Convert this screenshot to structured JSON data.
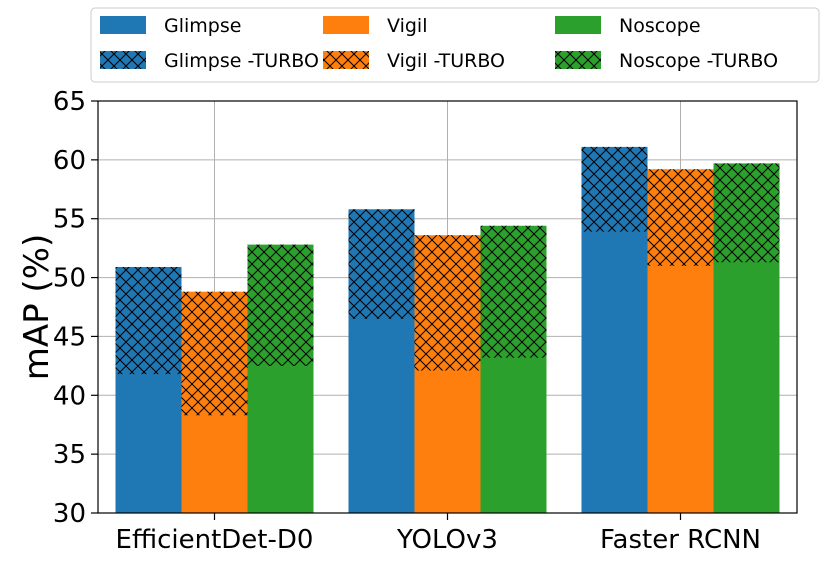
{
  "chart_data": {
    "type": "bar",
    "title": "",
    "xlabel": "",
    "ylabel": "mAP (%)",
    "ylim": [
      30,
      65
    ],
    "yticks": [
      30,
      35,
      40,
      45,
      50,
      55,
      60,
      65
    ],
    "grid": true,
    "categories": [
      "EfficientDet-D0",
      "YOLOv3",
      "Faster RCNN"
    ],
    "series": [
      {
        "name": "Glimpse",
        "turbo_name": "Glimpse -TURBO",
        "color": "#1f77b4",
        "base": [
          41.8,
          46.5,
          53.9
        ],
        "turbo": [
          50.9,
          55.8,
          61.1
        ]
      },
      {
        "name": "Vigil",
        "turbo_name": "Vigil -TURBO",
        "color": "#ff7f0e",
        "base": [
          38.3,
          42.1,
          51.0
        ],
        "turbo": [
          48.8,
          53.6,
          59.2
        ]
      },
      {
        "name": "Noscope",
        "turbo_name": "Noscope -TURBO",
        "color": "#2ca02c",
        "base": [
          42.5,
          43.2,
          51.3
        ],
        "turbo": [
          52.8,
          54.4,
          59.7
        ]
      }
    ],
    "legend": {
      "position": "top",
      "entries": [
        "Glimpse",
        "Vigil",
        "Noscope",
        "Glimpse -TURBO",
        "Vigil -TURBO",
        "Noscope -TURBO"
      ]
    }
  }
}
